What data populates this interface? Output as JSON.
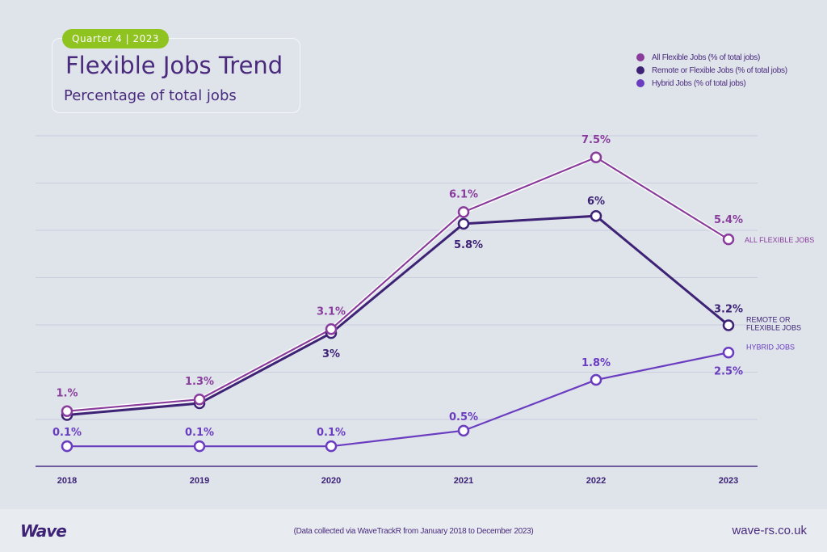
{
  "header": {
    "badge": "Quarter 4 | 2023",
    "title": "Flexible Jobs Trend",
    "subtitle": "Percentage of total jobs"
  },
  "legend": [
    {
      "label": "All Flexible Jobs (% of total jobs)",
      "color": "#8a3c9c"
    },
    {
      "label": "Remote or Flexible Jobs (% of total jobs)",
      "color": "#3d2275"
    },
    {
      "label": "Hybrid Jobs (% of total jobs)",
      "color": "#6a3cc0"
    }
  ],
  "chart_data": {
    "type": "line",
    "title": "Flexible Jobs Trend",
    "subtitle": "Percentage of total jobs",
    "xlabel": "",
    "ylabel": "",
    "x": [
      "2018",
      "2019",
      "2020",
      "2021",
      "2022",
      "2023"
    ],
    "ylim": [
      0,
      8.4
    ],
    "grid": true,
    "legend_position": "top-right",
    "series": [
      {
        "name": "All Flexible Jobs (% of total jobs)",
        "end_label": "ALL FLEXIBLE JOBS",
        "color": "#8a3c9c",
        "values": [
          1.0,
          1.3,
          3.1,
          6.1,
          7.5,
          5.4
        ],
        "labels": [
          "1.%",
          "1.3%",
          "3.1%",
          "6.1%",
          "7.5%",
          "5.4%"
        ]
      },
      {
        "name": "Remote or Flexible Jobs (% of total jobs)",
        "end_label": "REMOTE OR FLEXIBLE JOBS",
        "color": "#3d2275",
        "values": [
          0.9,
          1.2,
          3.0,
          5.8,
          6.0,
          3.2
        ],
        "labels": [
          "",
          "",
          "3%",
          "5.8%",
          "6%",
          "3.2%"
        ]
      },
      {
        "name": "Hybrid Jobs (% of total jobs)",
        "end_label": "HYBRID JOBS",
        "color": "#6a3cc0",
        "values": [
          0.1,
          0.1,
          0.1,
          0.5,
          1.8,
          2.5
        ],
        "labels": [
          "0.1%",
          "0.1%",
          "0.1%",
          "0.5%",
          "1.8%",
          "2.5%"
        ]
      }
    ]
  },
  "footer": {
    "logo": "Wave",
    "note": "(Data collected via WaveTrackR from January 2018 to December 2023)",
    "site": "wave-rs.co.uk"
  }
}
